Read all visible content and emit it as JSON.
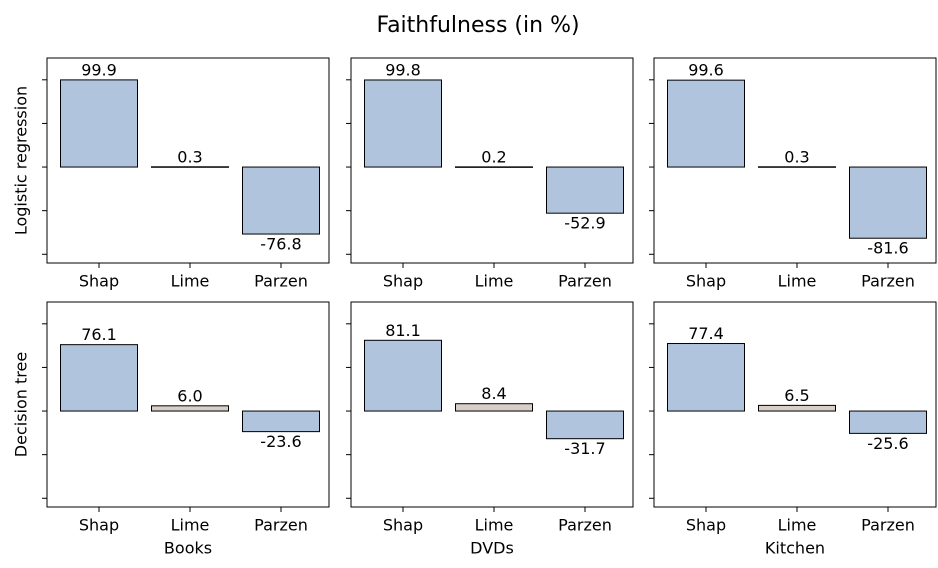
{
  "title": "Faithfulness (in %)",
  "row_labels": [
    "Logistic regression",
    "Decision tree"
  ],
  "column_labels": [
    "Books",
    "DVDs",
    "Kitchen"
  ],
  "chart_data": [
    {
      "type": "bar",
      "categories": [
        "Shap",
        "Lime",
        "Parzen"
      ],
      "values": [
        99.9,
        0.3,
        -76.8
      ],
      "colors": [
        "#b0c4de",
        "#d8d0c8",
        "#b0c4de"
      ],
      "ylim": [
        -110,
        125
      ],
      "yticks": [
        -100,
        -50,
        0,
        50,
        100
      ]
    },
    {
      "type": "bar",
      "categories": [
        "Shap",
        "Lime",
        "Parzen"
      ],
      "values": [
        99.8,
        0.2,
        -52.9
      ],
      "colors": [
        "#b0c4de",
        "#d8d0c8",
        "#b0c4de"
      ],
      "ylim": [
        -110,
        125
      ],
      "yticks": [
        -100,
        -50,
        0,
        50,
        100
      ]
    },
    {
      "type": "bar",
      "categories": [
        "Shap",
        "Lime",
        "Parzen"
      ],
      "values": [
        99.6,
        0.3,
        -81.6
      ],
      "colors": [
        "#b0c4de",
        "#d8d0c8",
        "#b0c4de"
      ],
      "ylim": [
        -110,
        125
      ],
      "yticks": [
        -100,
        -50,
        0,
        50,
        100
      ]
    },
    {
      "type": "bar",
      "categories": [
        "Shap",
        "Lime",
        "Parzen"
      ],
      "values": [
        76.1,
        6,
        -23.6
      ],
      "value_labels": [
        "76.1",
        "6.0",
        "-23.6"
      ],
      "colors": [
        "#b0c4de",
        "#d8d0c8",
        "#b0c4de"
      ],
      "ylim": [
        -110,
        125
      ],
      "yticks": [
        -100,
        -50,
        0,
        50,
        100
      ]
    },
    {
      "type": "bar",
      "categories": [
        "Shap",
        "Lime",
        "Parzen"
      ],
      "values": [
        81.1,
        8.4,
        -31.7
      ],
      "colors": [
        "#b0c4de",
        "#d8d0c8",
        "#b0c4de"
      ],
      "ylim": [
        -110,
        125
      ],
      "yticks": [
        -100,
        -50,
        0,
        50,
        100
      ]
    },
    {
      "type": "bar",
      "categories": [
        "Shap",
        "Lime",
        "Parzen"
      ],
      "values": [
        77.4,
        6.5,
        -25.6
      ],
      "colors": [
        "#b0c4de",
        "#d8d0c8",
        "#b0c4de"
      ],
      "ylim": [
        -110,
        125
      ],
      "yticks": [
        -100,
        -50,
        0,
        50,
        100
      ]
    }
  ]
}
